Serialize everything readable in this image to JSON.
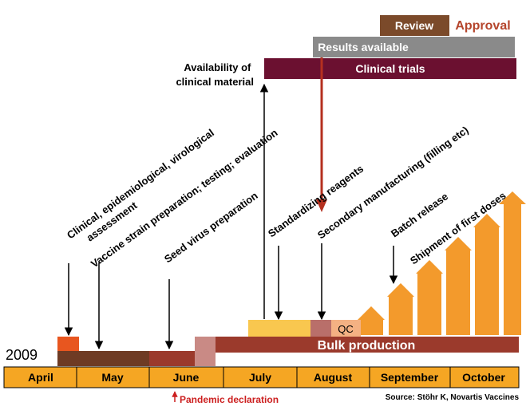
{
  "top": {
    "review": "Review",
    "approval": "Approval",
    "results_available": "Results available",
    "clinical_trials": "Clinical trials",
    "availability": [
      "Availability of",
      "clinical material"
    ]
  },
  "labels": {
    "assessment": [
      "Clinical, epidemiological, virological",
      "assessment"
    ],
    "vaccine_strain": "Vaccine strain preparation; testing; evaluation",
    "seed_virus": "Seed virus preparation",
    "standardizing": "Standardizing reagents",
    "secondary": "Secondary manufacturing (filling etc)",
    "batch_release": "Batch release",
    "shipment": "Shipment of first doses"
  },
  "year": "2009",
  "qc": "QC",
  "bulk_production": "Bulk production",
  "months": [
    "April",
    "May",
    "June",
    "July",
    "August",
    "September",
    "October"
  ],
  "pandemic": "Pandemic declaration",
  "source": "Source: Stöhr K, Novartis Vaccines",
  "colors": {
    "review_box": "#7b4a2a",
    "approval_text": "#b5452c",
    "results_box": "#8a8a8a",
    "clinical_box": "#6b1030",
    "month_bar": "#f5a623",
    "bulk": "#9b3a2c",
    "early_bar": "#6e3b24",
    "june_bar": "#9b3a2c",
    "small_orange": "#e8561f",
    "july_block": "#f9c74f",
    "qc_box": "#f4b183",
    "transition": "#c98a85",
    "arrows": "#f39a2c",
    "red_arrow": "#b5301f",
    "pandemic_text": "#cc1f1f"
  }
}
